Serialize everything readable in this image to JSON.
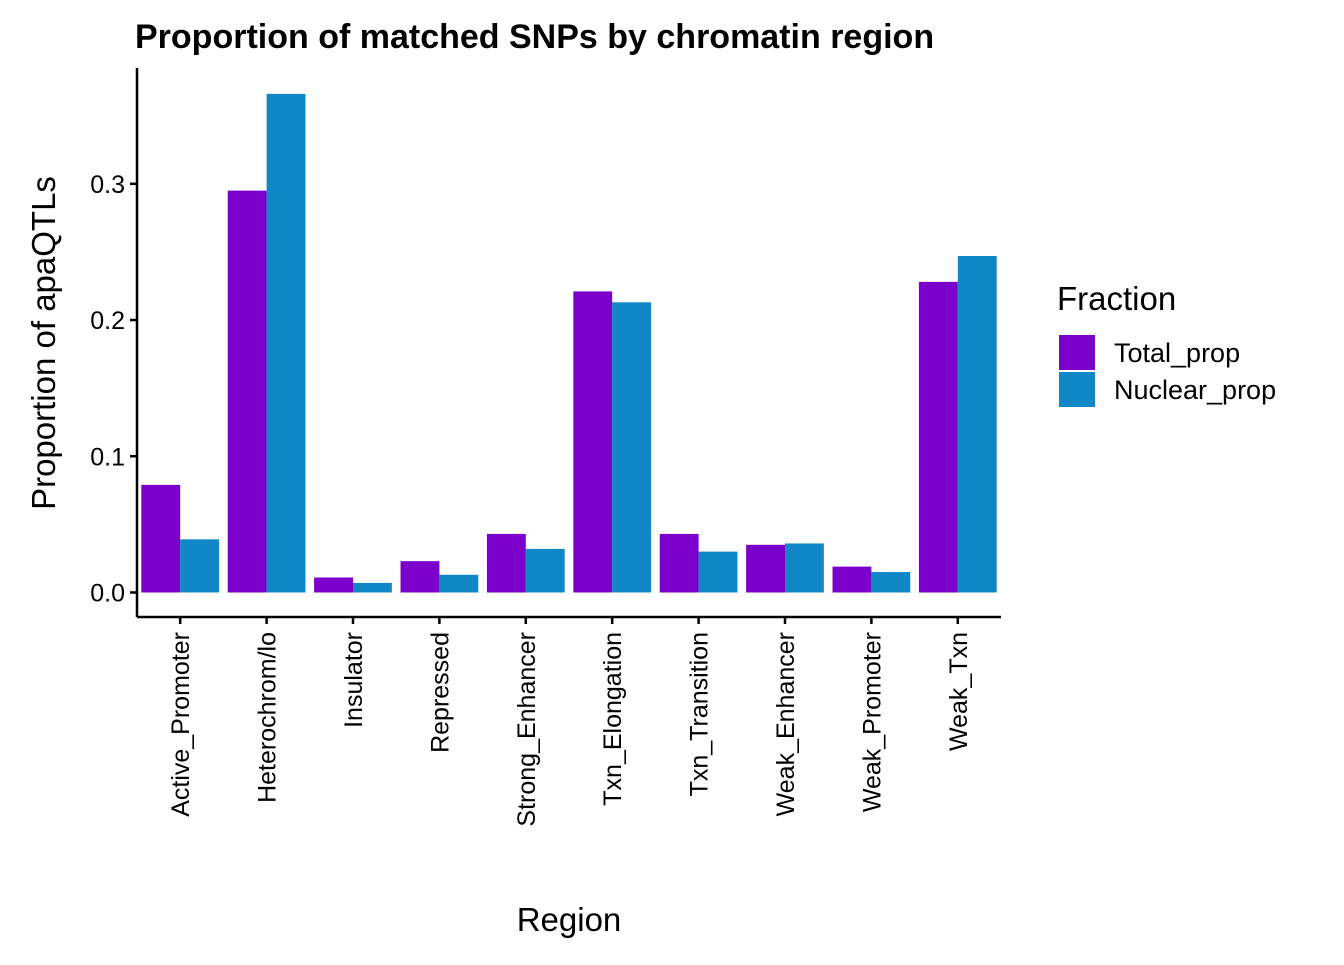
{
  "chart_data": {
    "type": "bar",
    "title": "Proportion of matched SNPs by chromatin region",
    "xlabel": "Region",
    "ylabel": "Proportion of apaQTLs",
    "categories": [
      "Active_Promoter",
      "Heterochrom/lo",
      "Insulator",
      "Repressed",
      "Strong_Enhancer",
      "Txn_Elongation",
      "Txn_Transition",
      "Weak_Enhancer",
      "Weak_Promoter",
      "Weak_Txn"
    ],
    "series": [
      {
        "name": "Total_prop",
        "color": "#7B00CC",
        "values": [
          0.079,
          0.295,
          0.011,
          0.023,
          0.043,
          0.221,
          0.043,
          0.035,
          0.019,
          0.228
        ]
      },
      {
        "name": "Nuclear_prop",
        "color": "#1287C8",
        "values": [
          0.039,
          0.366,
          0.007,
          0.013,
          0.032,
          0.213,
          0.03,
          0.036,
          0.015,
          0.247
        ]
      }
    ],
    "ylim": [
      -0.018,
      0.385
    ],
    "yticks": [
      0.0,
      0.1,
      0.2,
      0.3
    ],
    "ytick_labels": [
      "0.0",
      "0.1",
      "0.2",
      "0.3"
    ],
    "legend": {
      "title": "Fraction",
      "position": "right"
    },
    "grid": false
  }
}
